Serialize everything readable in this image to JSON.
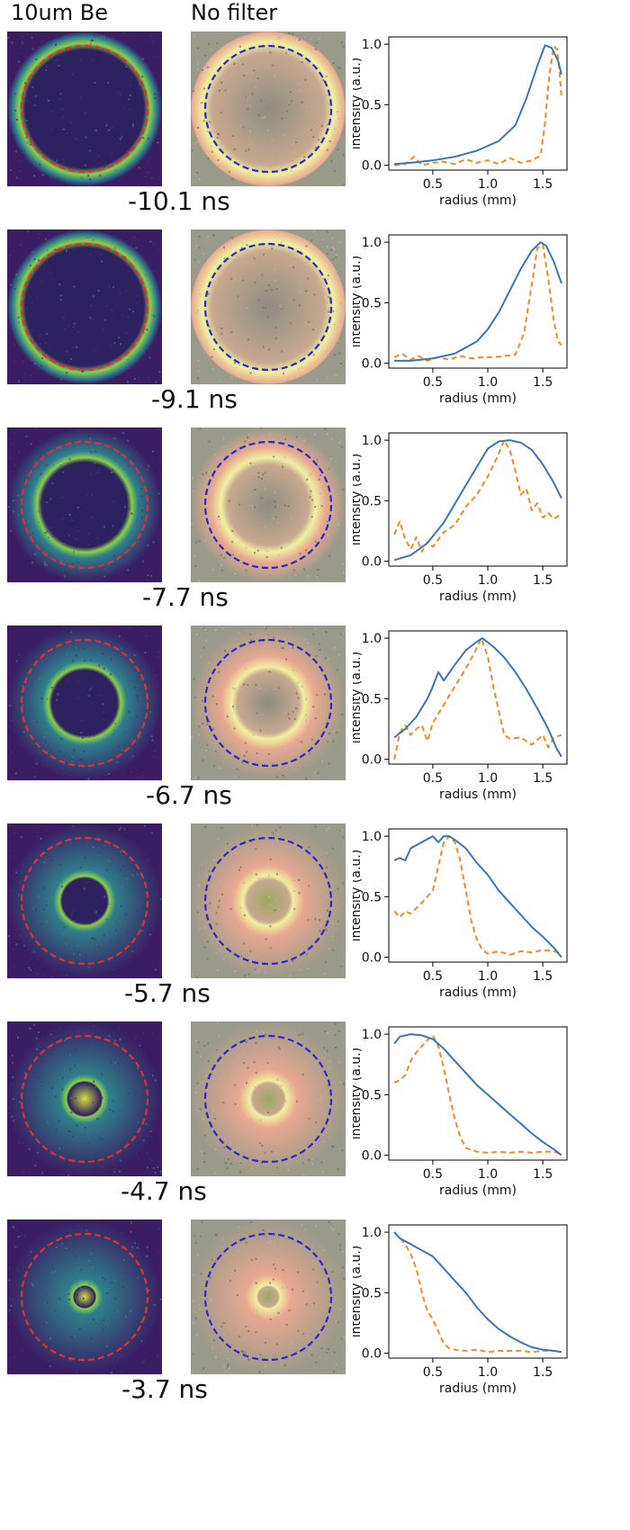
{
  "headers": {
    "col1": "10um Be",
    "col2": "No filter"
  },
  "colors": {
    "be_circle": "#e03030",
    "nf_circle": "#2828c8",
    "be_background": "#3a1d63",
    "nf_background": "#9a9a8a",
    "series_solid": "#3a76b4",
    "series_dashed": "#f08a24"
  },
  "chart_data": [
    {
      "type": "line",
      "time_label": "-10.1 ns",
      "xlabel": "radius  (mm)",
      "ylabel": "intensity  (a.u.)",
      "xlim": [
        0.1,
        1.72
      ],
      "ylim": [
        -0.04,
        1.06
      ],
      "xticks": [
        "0.5",
        "1.0",
        "1.5"
      ],
      "yticks": [
        "0.0",
        "0.5",
        "1.0"
      ],
      "series": [
        {
          "style": "solid",
          "x": [
            0.15,
            0.3,
            0.5,
            0.7,
            0.9,
            1.1,
            1.25,
            1.35,
            1.45,
            1.52,
            1.58,
            1.64,
            1.67
          ],
          "y": [
            0.01,
            0.02,
            0.04,
            0.07,
            0.12,
            0.2,
            0.33,
            0.55,
            0.82,
            0.99,
            0.97,
            0.86,
            0.75
          ]
        },
        {
          "style": "dashed",
          "x": [
            0.15,
            0.25,
            0.33,
            0.4,
            0.5,
            0.6,
            0.7,
            0.8,
            0.9,
            1.0,
            1.1,
            1.2,
            1.3,
            1.4,
            1.48,
            1.52,
            1.56,
            1.6,
            1.63,
            1.65,
            1.67
          ],
          "y": [
            0.0,
            0.01,
            0.07,
            0.0,
            0.02,
            0.03,
            0.01,
            0.05,
            0.02,
            0.04,
            0.01,
            0.06,
            0.02,
            0.04,
            0.08,
            0.35,
            0.75,
            0.98,
            0.96,
            0.8,
            0.56
          ]
        }
      ]
    },
    {
      "type": "line",
      "time_label": "-9.1 ns",
      "xlabel": "radius  (mm)",
      "ylabel": "intensity  (a.u.)",
      "xlim": [
        0.1,
        1.72
      ],
      "ylim": [
        -0.04,
        1.06
      ],
      "xticks": [
        "0.5",
        "1.0",
        "1.5"
      ],
      "yticks": [
        "0.0",
        "0.5",
        "1.0"
      ],
      "series": [
        {
          "style": "solid",
          "x": [
            0.15,
            0.3,
            0.5,
            0.7,
            0.9,
            1.0,
            1.1,
            1.2,
            1.3,
            1.4,
            1.48,
            1.53,
            1.6,
            1.67
          ],
          "y": [
            0.02,
            0.02,
            0.04,
            0.08,
            0.18,
            0.28,
            0.42,
            0.6,
            0.78,
            0.93,
            1.0,
            0.97,
            0.84,
            0.66
          ]
        },
        {
          "style": "dashed",
          "x": [
            0.15,
            0.22,
            0.3,
            0.37,
            0.45,
            0.55,
            0.65,
            0.75,
            0.85,
            0.95,
            1.05,
            1.15,
            1.25,
            1.33,
            1.4,
            1.45,
            1.5,
            1.55,
            1.6,
            1.64,
            1.67
          ],
          "y": [
            0.05,
            0.08,
            0.03,
            0.06,
            0.02,
            0.05,
            0.03,
            0.06,
            0.04,
            0.05,
            0.05,
            0.06,
            0.07,
            0.25,
            0.65,
            0.95,
            0.98,
            0.7,
            0.35,
            0.18,
            0.15
          ]
        }
      ]
    },
    {
      "type": "line",
      "time_label": "-7.7 ns",
      "xlabel": "radius  (mm)",
      "ylabel": "intensity  (a.u.)",
      "xlim": [
        0.1,
        1.72
      ],
      "ylim": [
        -0.04,
        1.06
      ],
      "xticks": [
        "0.5",
        "1.0",
        "1.5"
      ],
      "yticks": [
        "0.0",
        "0.5",
        "1.0"
      ],
      "series": [
        {
          "style": "solid",
          "x": [
            0.15,
            0.3,
            0.45,
            0.6,
            0.75,
            0.9,
            1.0,
            1.1,
            1.2,
            1.3,
            1.4,
            1.5,
            1.6,
            1.67
          ],
          "y": [
            0.01,
            0.05,
            0.15,
            0.32,
            0.55,
            0.78,
            0.93,
            0.99,
            1.0,
            0.98,
            0.92,
            0.8,
            0.65,
            0.52
          ]
        },
        {
          "style": "dashed",
          "x": [
            0.15,
            0.2,
            0.25,
            0.3,
            0.35,
            0.4,
            0.45,
            0.5,
            0.6,
            0.7,
            0.8,
            0.9,
            1.0,
            1.08,
            1.15,
            1.2,
            1.25,
            1.3,
            1.35,
            1.4,
            1.45,
            1.5,
            1.55,
            1.6,
            1.65
          ],
          "y": [
            0.22,
            0.33,
            0.18,
            0.1,
            0.2,
            0.08,
            0.16,
            0.12,
            0.24,
            0.3,
            0.45,
            0.55,
            0.7,
            0.85,
            1.0,
            0.92,
            0.75,
            0.55,
            0.6,
            0.42,
            0.48,
            0.36,
            0.4,
            0.35,
            0.38
          ]
        }
      ]
    },
    {
      "type": "line",
      "time_label": "-6.7 ns",
      "xlabel": "radius  (mm)",
      "ylabel": "intensity  (a.u.)",
      "xlim": [
        0.1,
        1.72
      ],
      "ylim": [
        -0.04,
        1.06
      ],
      "xticks": [
        "0.5",
        "1.0",
        "1.5"
      ],
      "yticks": [
        "0.0",
        "0.5",
        "1.0"
      ],
      "series": [
        {
          "style": "solid",
          "x": [
            0.15,
            0.25,
            0.35,
            0.45,
            0.5,
            0.55,
            0.6,
            0.7,
            0.8,
            0.9,
            0.95,
            1.05,
            1.15,
            1.25,
            1.35,
            1.45,
            1.55,
            1.62,
            1.67
          ],
          "y": [
            0.18,
            0.25,
            0.35,
            0.5,
            0.6,
            0.72,
            0.65,
            0.78,
            0.9,
            0.97,
            1.0,
            0.93,
            0.84,
            0.72,
            0.58,
            0.42,
            0.25,
            0.1,
            0.02
          ]
        },
        {
          "style": "dashed",
          "x": [
            0.15,
            0.2,
            0.25,
            0.3,
            0.35,
            0.4,
            0.45,
            0.5,
            0.6,
            0.7,
            0.8,
            0.88,
            0.94,
            1.0,
            1.05,
            1.1,
            1.15,
            1.2,
            1.3,
            1.4,
            1.5,
            1.55,
            1.6,
            1.67
          ],
          "y": [
            0.0,
            0.22,
            0.28,
            0.2,
            0.25,
            0.28,
            0.15,
            0.3,
            0.45,
            0.6,
            0.75,
            0.88,
            1.0,
            0.85,
            0.6,
            0.4,
            0.2,
            0.17,
            0.18,
            0.12,
            0.2,
            0.1,
            0.18,
            0.2
          ]
        }
      ]
    },
    {
      "type": "line",
      "time_label": "-5.7 ns",
      "xlabel": "radius  (mm)",
      "ylabel": "intensity  (a.u.)",
      "xlim": [
        0.1,
        1.72
      ],
      "ylim": [
        -0.04,
        1.06
      ],
      "xticks": [
        "0.5",
        "1.0",
        "1.5"
      ],
      "yticks": [
        "0.0",
        "0.5",
        "1.0"
      ],
      "series": [
        {
          "style": "solid",
          "x": [
            0.15,
            0.2,
            0.25,
            0.3,
            0.4,
            0.5,
            0.55,
            0.6,
            0.65,
            0.7,
            0.8,
            0.9,
            1.0,
            1.1,
            1.2,
            1.3,
            1.4,
            1.5,
            1.6,
            1.67
          ],
          "y": [
            0.8,
            0.82,
            0.8,
            0.9,
            0.95,
            1.0,
            0.95,
            1.0,
            1.0,
            0.97,
            0.9,
            0.78,
            0.68,
            0.55,
            0.45,
            0.35,
            0.25,
            0.17,
            0.08,
            0.0
          ]
        },
        {
          "style": "dashed",
          "x": [
            0.15,
            0.2,
            0.25,
            0.3,
            0.4,
            0.5,
            0.55,
            0.6,
            0.65,
            0.7,
            0.75,
            0.8,
            0.85,
            0.9,
            0.95,
            1.0,
            1.1,
            1.2,
            1.3,
            1.4,
            1.5,
            1.6,
            1.67
          ],
          "y": [
            0.38,
            0.33,
            0.38,
            0.36,
            0.45,
            0.55,
            0.75,
            0.95,
            1.0,
            0.95,
            0.8,
            0.55,
            0.3,
            0.15,
            0.06,
            0.03,
            0.05,
            0.02,
            0.05,
            0.04,
            0.06,
            0.05,
            0.03
          ]
        }
      ]
    },
    {
      "type": "line",
      "time_label": "-4.7 ns",
      "xlabel": "radius  (mm)",
      "ylabel": "intensity  (a.u.)",
      "xlim": [
        0.1,
        1.72
      ],
      "ylim": [
        -0.04,
        1.06
      ],
      "xticks": [
        "0.5",
        "1.0",
        "1.5"
      ],
      "yticks": [
        "0.0",
        "0.5",
        "1.0"
      ],
      "series": [
        {
          "style": "solid",
          "x": [
            0.15,
            0.2,
            0.3,
            0.4,
            0.5,
            0.6,
            0.7,
            0.8,
            0.9,
            1.0,
            1.1,
            1.2,
            1.3,
            1.4,
            1.5,
            1.6,
            1.67
          ],
          "y": [
            0.92,
            0.98,
            1.0,
            0.99,
            0.96,
            0.88,
            0.78,
            0.68,
            0.58,
            0.5,
            0.42,
            0.34,
            0.26,
            0.18,
            0.11,
            0.05,
            0.0
          ]
        },
        {
          "style": "dashed",
          "x": [
            0.15,
            0.2,
            0.25,
            0.3,
            0.35,
            0.4,
            0.45,
            0.5,
            0.55,
            0.6,
            0.65,
            0.7,
            0.75,
            0.8,
            0.9,
            1.0,
            1.1,
            1.2,
            1.3,
            1.4,
            1.5,
            1.6,
            1.67
          ],
          "y": [
            0.6,
            0.62,
            0.66,
            0.78,
            0.85,
            0.9,
            0.95,
            0.99,
            0.9,
            0.72,
            0.5,
            0.3,
            0.15,
            0.06,
            0.03,
            0.02,
            0.03,
            0.02,
            0.03,
            0.02,
            0.03,
            0.03,
            0.01
          ]
        }
      ]
    },
    {
      "type": "line",
      "time_label": "-3.7 ns",
      "xlabel": "radius  (mm)",
      "ylabel": "intensity  (a.u.)",
      "xlim": [
        0.1,
        1.72
      ],
      "ylim": [
        -0.04,
        1.06
      ],
      "xticks": [
        "0.5",
        "1.0",
        "1.5"
      ],
      "yticks": [
        "0.0",
        "0.5",
        "1.0"
      ],
      "series": [
        {
          "style": "solid",
          "x": [
            0.15,
            0.2,
            0.3,
            0.4,
            0.5,
            0.6,
            0.7,
            0.8,
            0.9,
            1.0,
            1.1,
            1.2,
            1.3,
            1.4,
            1.5,
            1.6,
            1.67
          ],
          "y": [
            1.0,
            0.95,
            0.9,
            0.85,
            0.8,
            0.7,
            0.6,
            0.5,
            0.38,
            0.28,
            0.2,
            0.14,
            0.09,
            0.05,
            0.03,
            0.02,
            0.01
          ]
        },
        {
          "style": "dashed",
          "x": [
            0.15,
            0.2,
            0.25,
            0.3,
            0.35,
            0.4,
            0.45,
            0.5,
            0.55,
            0.6,
            0.65,
            0.7,
            0.8,
            0.9,
            1.0,
            1.1,
            1.2,
            1.3,
            1.4,
            1.5,
            1.6,
            1.67
          ],
          "y": [
            1.0,
            0.95,
            0.9,
            0.82,
            0.7,
            0.5,
            0.35,
            0.28,
            0.18,
            0.08,
            0.04,
            0.03,
            0.02,
            0.03,
            0.01,
            0.02,
            0.02,
            0.02,
            0.01,
            0.02,
            0.02,
            0.01
          ]
        }
      ]
    }
  ]
}
